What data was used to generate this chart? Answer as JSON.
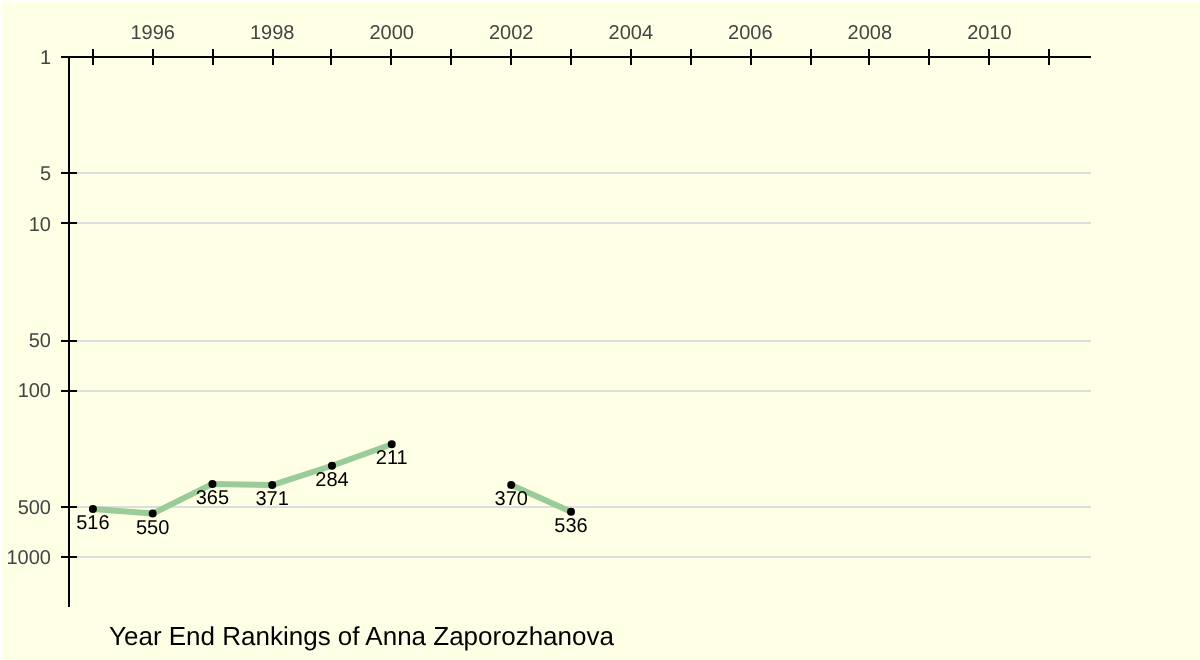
{
  "chart_data": {
    "type": "line",
    "title": "Year End Rankings of Anna Zaporozhanova",
    "x": [
      1995,
      1996,
      1997,
      1998,
      1999,
      2000,
      2001,
      2002,
      2003
    ],
    "series": [
      {
        "color": "#99cc99",
        "values": [
          516,
          550,
          365,
          371,
          284,
          211,
          null,
          370,
          536
        ]
      }
    ],
    "data_labels": true,
    "marker": "circle",
    "log": "y",
    "xlim": [
      1994.6,
      2011.7
    ],
    "xticks": [
      {
        "value": 1995,
        "label": null
      },
      1996,
      {
        "value": 1997,
        "label": null
      },
      1998,
      {
        "value": 1999,
        "label": null
      },
      2000,
      {
        "value": 2001,
        "label": null
      },
      2002,
      {
        "value": 2003,
        "label": null
      },
      2004,
      {
        "value": 2005,
        "label": null
      },
      2006,
      {
        "value": 2007,
        "label": null
      },
      2008,
      {
        "value": 2009,
        "label": null
      },
      2010,
      {
        "value": 2011,
        "label": null
      }
    ],
    "ylim": [
      2000,
      1
    ],
    "yticks": [
      1,
      5,
      10,
      50,
      100,
      500,
      1000
    ],
    "grid": "y"
  }
}
